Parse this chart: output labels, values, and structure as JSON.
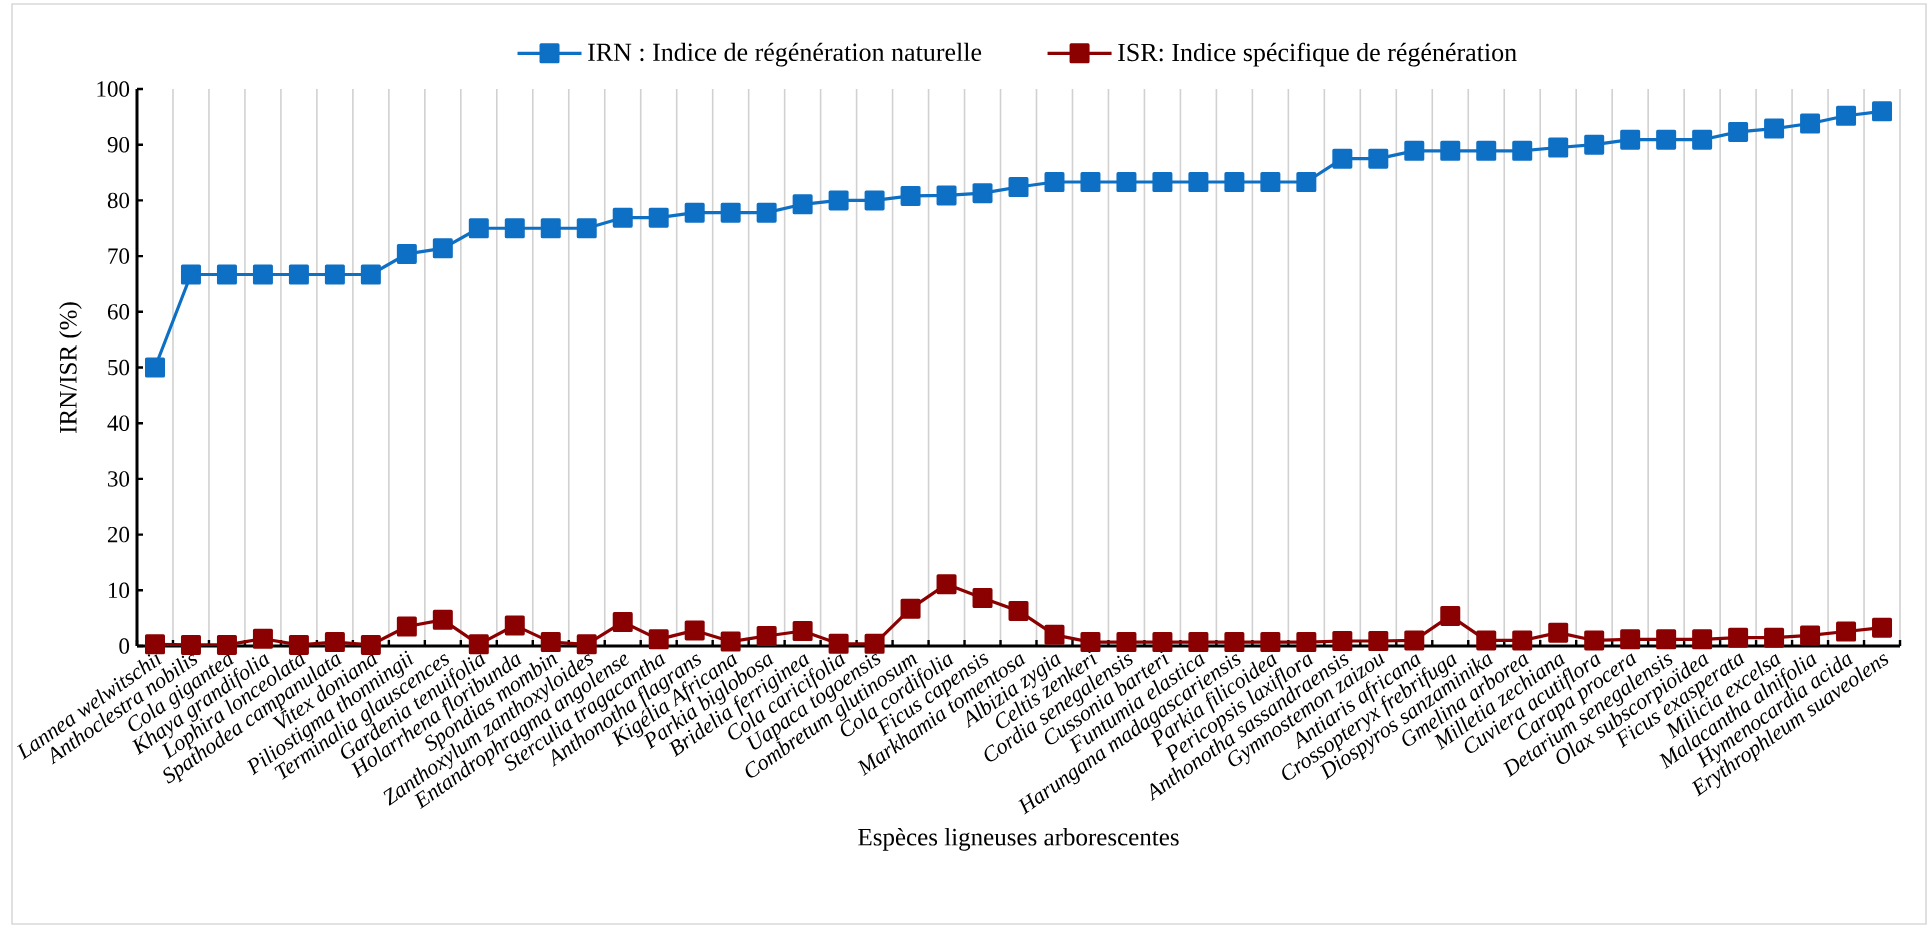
{
  "chart_data": {
    "type": "line",
    "xlabel": "Espèces ligneuses arborescentes",
    "ylabel": "IRN/ISR (%)",
    "categories": [
      "Lannea welwitschii",
      "Anthoclestra nobilis",
      "Cola gigantea",
      "Khaya grandifolia",
      "Lophira lonceolata",
      "Spathodea campanulata",
      "Vitex doniana",
      "Piliostigma thonningii",
      "Terminalia glauscences",
      "Gardenia tenuifolia",
      "Holarrhena floribunda",
      "Spondias mombin",
      "Zanthoxylum zanthoxyloides",
      "Entandrophragma angolense",
      "Sterculia tragacantha",
      "Anthonotha flagrans",
      "Kigélia Africana",
      "Parkia biglobosa",
      "Bridelia ferriginea",
      "Cola caricifolia",
      "Uapaca togoensis",
      "Combretum glutinosum",
      "Cola cordifolia",
      "Ficus capensis",
      "Markhamia tomentosa",
      "Albizia zygia",
      "Celtis zenkeri",
      "Cordia senegalensis",
      "Cussonia barteri",
      "Funtumia elastica",
      "Harungana madagascariensis",
      "Parkia filicoidea",
      "Pericopsis laxiflora",
      "Anthonotha sassandraensis",
      "Gymnostemon zaizou",
      "Antiaris africana",
      "Crossopteryx frebrifuga",
      "Diospyros sanzaminika",
      "Gmelina arborea",
      "Milletia zechiana",
      "Cuviera acutiflora",
      "Carapa procera",
      "Detarium senegalensis",
      "Olax subscorpioïdea",
      "Ficus exasperata",
      "Milicia excelsa",
      "Malacantha alnifolia",
      "Hymenocardia acida",
      "Erythrophleum suaveolens"
    ],
    "series": [
      {
        "name": "IRN : Indice de régénération naturelle",
        "color": "#0e70c4",
        "values": [
          50,
          66.7,
          66.7,
          66.7,
          66.7,
          66.7,
          66.7,
          70.4,
          71.4,
          75,
          75,
          75,
          75,
          76.9,
          76.9,
          77.8,
          77.8,
          77.8,
          79.3,
          80,
          80,
          80.8,
          80.9,
          81.3,
          82.4,
          83.3,
          83.3,
          83.3,
          83.3,
          83.3,
          83.3,
          83.3,
          83.3,
          87.5,
          87.5,
          88.9,
          88.9,
          88.9,
          88.9,
          89.5,
          90,
          90.9,
          90.9,
          90.9,
          92.3,
          92.9,
          93.8,
          95.2,
          96
        ]
      },
      {
        "name": "ISR: Indice spécifique de régénération",
        "color": "#8b0000",
        "values": [
          0.3,
          0.2,
          0.2,
          1.3,
          0.2,
          0.7,
          0.2,
          3.5,
          4.7,
          0.3,
          3.7,
          0.7,
          0.3,
          4.3,
          1.2,
          2.8,
          0.8,
          1.8,
          2.7,
          0.4,
          0.4,
          6.7,
          11.1,
          8.6,
          6.3,
          2.0,
          0.7,
          0.7,
          0.7,
          0.7,
          0.7,
          0.7,
          0.7,
          0.9,
          0.9,
          1.0,
          5.4,
          1.0,
          1.0,
          2.4,
          1.0,
          1.2,
          1.2,
          1.2,
          1.5,
          1.5,
          1.9,
          2.6,
          3.3
        ]
      }
    ],
    "ylim": [
      0,
      100
    ],
    "yticks": [
      0,
      10,
      20,
      30,
      40,
      50,
      60,
      70,
      80,
      90,
      100
    ],
    "grid": "x",
    "legend": "top",
    "marker": "square",
    "line_style": "solid"
  }
}
